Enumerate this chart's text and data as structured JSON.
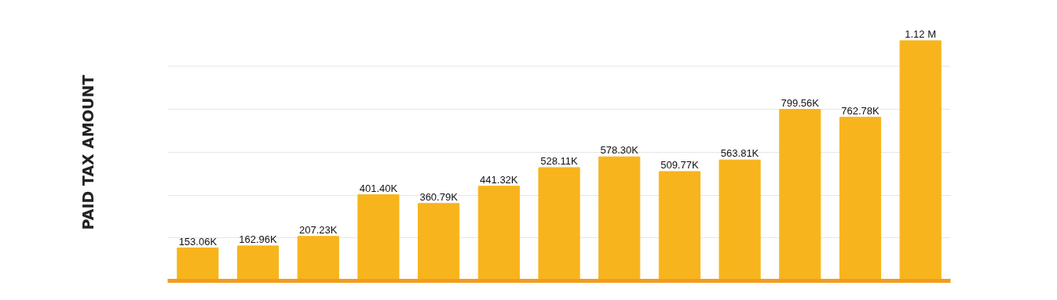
{
  "chart_data": {
    "type": "bar",
    "ylabel": "PAID TAX AMOUNT",
    "categories": [
      null,
      null,
      null,
      null,
      null,
      null,
      null,
      null,
      null,
      null,
      null,
      null,
      null
    ],
    "values": [
      153060,
      162960,
      207230,
      401400,
      360790,
      441320,
      528110,
      578300,
      509770,
      563810,
      799560,
      762780,
      1120000
    ],
    "value_labels": [
      "153.06K",
      "162.96K",
      "207.23K",
      "401.40K",
      "360.79K",
      "441.32K",
      "528.11K",
      "578.30K",
      "509.77K",
      "563.81K",
      "799.56K",
      "762.78K",
      "1.12 M"
    ],
    "color": "#f7b41c",
    "yticks": [
      {
        "value": 200000,
        "label": null
      },
      {
        "value": 400000,
        "label": null
      },
      {
        "value": 600000,
        "label": null
      },
      {
        "value": 800000,
        "label": null
      },
      {
        "value": 1000000,
        "label": null
      }
    ],
    "grid": "y"
  }
}
